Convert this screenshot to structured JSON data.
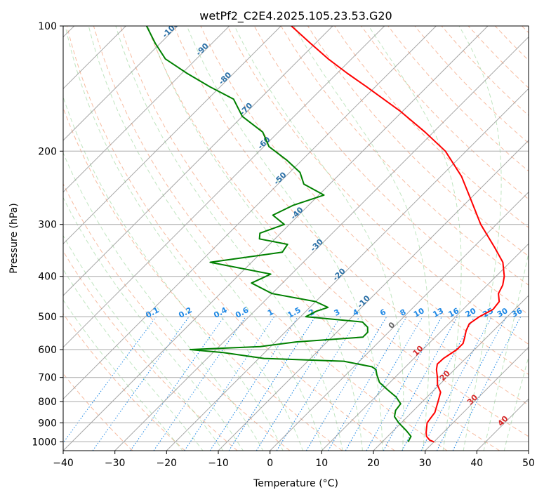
{
  "chart_data": {
    "type": "skew-t",
    "title": "wetPf2_C2E4.2025.105.23.53.G20",
    "xlabel": "Temperature (°C)",
    "ylabel": "Pressure (hPa)",
    "xlim": [
      -40,
      50
    ],
    "ylim": [
      1050,
      100
    ],
    "y_scale": "log",
    "x_ticks": [
      -40,
      -30,
      -20,
      -10,
      0,
      10,
      20,
      30,
      40,
      50
    ],
    "y_ticks": [
      100,
      200,
      300,
      400,
      500,
      600,
      700,
      800,
      900,
      1000
    ],
    "grid": true,
    "temperature_profile": {
      "color": "#ff0000",
      "pressure": [
        1000,
        990,
        970,
        950,
        900,
        850,
        800,
        760,
        730,
        700,
        670,
        650,
        630,
        600,
        580,
        560,
        540,
        520,
        500,
        480,
        460,
        440,
        420,
        400,
        370,
        340,
        300,
        260,
        230,
        200,
        180,
        160,
        140,
        130,
        120,
        110,
        100
      ],
      "temperature": [
        30.0,
        28.8,
        27.5,
        26.7,
        25.0,
        24.5,
        23.0,
        21.7,
        19.7,
        18.2,
        16.5,
        15.6,
        15.7,
        16.6,
        16.6,
        15.7,
        14.7,
        14.0,
        14.6,
        15.8,
        15.5,
        13.8,
        13.0,
        11.6,
        8.6,
        4.0,
        -3.0,
        -10.0,
        -16.0,
        -24.0,
        -31.6,
        -40.6,
        -51.7,
        -58.0,
        -64.5,
        -71.0,
        -78.0
      ]
    },
    "dewpoint_profile": {
      "color": "#008000",
      "pressure": [
        1000,
        970,
        940,
        900,
        870,
        840,
        810,
        780,
        750,
        720,
        690,
        670,
        660,
        640,
        630,
        610,
        600,
        590,
        575,
        560,
        545,
        530,
        515,
        500,
        485,
        475,
        460,
        440,
        415,
        395,
        370,
        350,
        335,
        325,
        315,
        300,
        285,
        270,
        255,
        240,
        225,
        210,
        195,
        180,
        165,
        150,
        140,
        130,
        120,
        110,
        100
      ],
      "dewpoint": [
        25.0,
        24.5,
        22.5,
        19.5,
        17.5,
        16.5,
        16.2,
        14.0,
        11.0,
        8.0,
        6.0,
        4.8,
        3.5,
        -3.0,
        -19.0,
        -28.0,
        -35.0,
        -22.0,
        -16.0,
        -4.0,
        -4.0,
        -5.0,
        -7.0,
        -19.0,
        -18.0,
        -16.5,
        -20.0,
        -30.0,
        -36.0,
        -34.0,
        -48.0,
        -36.0,
        -36.5,
        -43.0,
        -44.0,
        -41.0,
        -45.0,
        -43.0,
        -39.0,
        -45.0,
        -48.0,
        -53.0,
        -59.0,
        -63.0,
        -70.0,
        -75.0,
        -82.0,
        -89.0,
        -96.0,
        -101.0,
        -106.0
      ]
    },
    "dry_adiabats_label": [
      -100,
      -90,
      -80,
      -70,
      -60,
      -50,
      -40,
      -30,
      -20,
      -10,
      0,
      10,
      20,
      30,
      40
    ],
    "mixing_ratio_labels": [
      "0.1",
      "0.2",
      "0.4",
      "0.6",
      "1",
      "1.5",
      "2",
      "3",
      "4",
      "6",
      "8",
      "10",
      "13",
      "16",
      "20",
      "25",
      "30",
      "36"
    ]
  }
}
